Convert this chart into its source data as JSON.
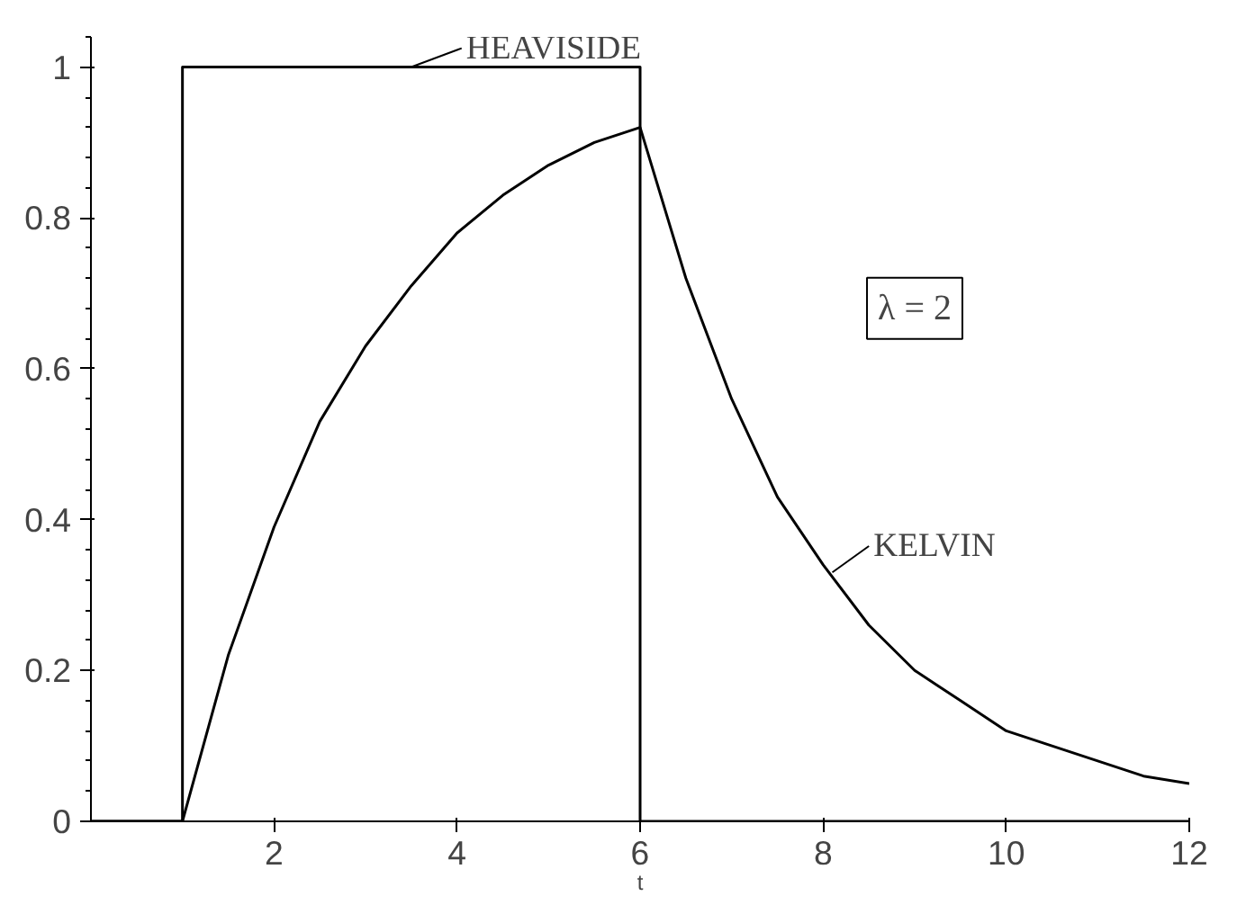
{
  "chart_data": {
    "type": "line",
    "xlabel": "t",
    "xlim": [
      0,
      12
    ],
    "ylim": [
      0,
      1.04
    ],
    "xticks": [
      2,
      4,
      6,
      8,
      10,
      12
    ],
    "yticks": [
      0,
      0.2,
      0.4,
      0.6,
      0.8,
      1
    ],
    "series": [
      {
        "name": "HEAVISIDE",
        "color": "#000000",
        "x": [
          0,
          1,
          1,
          6,
          6,
          12
        ],
        "values": [
          0,
          0,
          1,
          1,
          0,
          0
        ]
      },
      {
        "name": "KELVIN",
        "color": "#000000",
        "x": [
          0,
          1,
          1.5,
          2,
          2.5,
          3,
          3.5,
          4,
          4.5,
          5,
          5.5,
          6,
          6.5,
          7,
          7.5,
          8,
          8.5,
          9,
          9.5,
          10,
          10.5,
          11,
          11.5,
          12
        ],
        "values": [
          0,
          0,
          0.22,
          0.39,
          0.53,
          0.63,
          0.71,
          0.78,
          0.83,
          0.87,
          0.9,
          0.92,
          0.72,
          0.56,
          0.43,
          0.34,
          0.26,
          0.2,
          0.16,
          0.12,
          0.1,
          0.08,
          0.06,
          0.05
        ]
      }
    ],
    "annotations": [
      "λ = 2"
    ],
    "grid": false,
    "legend": "top right",
    "marker": "none",
    "line_style": "solid"
  }
}
